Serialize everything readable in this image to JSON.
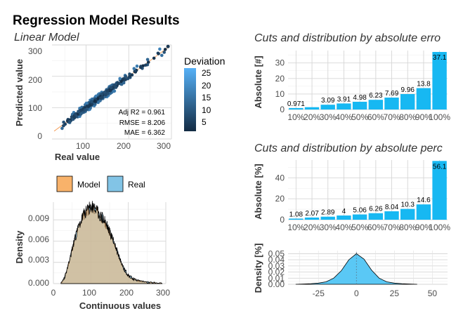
{
  "header": {
    "title": "Regression Model Results",
    "subtitle": "Linear Model"
  },
  "scatter": {
    "xlabel": "Real value",
    "ylabel": "Predicted value",
    "xticks": [
      "100",
      "200",
      "300"
    ],
    "yticks": [
      "0",
      "100",
      "200",
      "300"
    ],
    "stats": [
      "Adj R2 =  0.961",
      "RMSE = 8.206",
      "MAE = 6.362"
    ],
    "legend_title": "Deviation",
    "legend_ticks": [
      "25",
      "20",
      "15",
      "10",
      "5"
    ],
    "colors": {
      "low": "#132B43",
      "high": "#56B1F7",
      "line": "#f4a261"
    }
  },
  "density_panel": {
    "legend_items": [
      "Model",
      "Real"
    ],
    "colors": {
      "model": "#f8b26a",
      "real": "#82c4e6",
      "overlap": "#8aa6a5"
    },
    "xlabel": "Continuous values",
    "ylabel": "Density",
    "xticks": [
      "0",
      "100",
      "200",
      "300"
    ],
    "yticks": [
      "0.000",
      "0.003",
      "0.006",
      "0.009"
    ]
  },
  "cuts_abs": {
    "title": "Cuts and distribution by absolute erro",
    "ylabel": "Absolute [#]",
    "yticks": [
      "0",
      "10",
      "20",
      "30"
    ],
    "bar_color": "#17b8f2"
  },
  "cuts_pct": {
    "title": "Cuts and distribution by absolute perc",
    "ylabel": "Absolute [%]",
    "yticks": [
      "0",
      "20",
      "40"
    ],
    "bar_color": "#17b8f2"
  },
  "error_density": {
    "ylabel": "Density [%]",
    "yticks": [
      "0.00",
      "0.01",
      "0.02",
      "0.03",
      "0.04",
      "0.05"
    ],
    "xticks": [
      "-25",
      "0",
      "25",
      "50"
    ],
    "fill": "#5ac8f5"
  },
  "chart_data": [
    {
      "type": "scatter",
      "title": "Linear Model",
      "xlabel": "Real value",
      "ylabel": "Predicted value",
      "xlim": [
        20,
        300
      ],
      "ylim": [
        0,
        300
      ],
      "color_scale": "Deviation",
      "annotations": [
        "Adj R2 =  0.961",
        "RMSE = 8.206",
        "MAE = 6.362"
      ]
    },
    {
      "type": "area",
      "xlabel": "Continuous values",
      "ylabel": "Density",
      "xlim": [
        0,
        300
      ],
      "ylim": [
        0,
        0.0115
      ],
      "series": [
        {
          "name": "Model",
          "x": [
            20,
            30,
            40,
            50,
            60,
            70,
            80,
            90,
            100,
            110,
            120,
            130,
            140,
            150,
            160,
            170,
            180,
            190,
            200,
            210,
            220,
            230,
            250,
            270,
            290
          ],
          "y": [
            0.0,
            0.0008,
            0.0026,
            0.0048,
            0.0068,
            0.0083,
            0.0096,
            0.0103,
            0.0107,
            0.0105,
            0.0099,
            0.0092,
            0.0084,
            0.0073,
            0.006,
            0.0045,
            0.0031,
            0.0019,
            0.0011,
            0.0007,
            0.0005,
            0.0004,
            0.0002,
            0.0001,
            0.0
          ]
        },
        {
          "name": "Real",
          "x": [
            20,
            30,
            40,
            50,
            60,
            70,
            80,
            90,
            100,
            110,
            120,
            130,
            140,
            150,
            160,
            170,
            180,
            190,
            200,
            210,
            220,
            230,
            250,
            270,
            290
          ],
          "y": [
            0.0,
            0.0009,
            0.0027,
            0.0049,
            0.0069,
            0.0084,
            0.0097,
            0.0104,
            0.0108,
            0.0106,
            0.01,
            0.0093,
            0.0085,
            0.0074,
            0.0061,
            0.0046,
            0.0032,
            0.002,
            0.0012,
            0.0008,
            0.0005,
            0.0004,
            0.0002,
            0.0001,
            0.0
          ]
        }
      ]
    },
    {
      "type": "bar",
      "title": "Cuts and distribution by absolute erro",
      "ylabel": "Absolute [#]",
      "categories": [
        "10%",
        "20%",
        "30%",
        "40%",
        "50%",
        "60%",
        "70%",
        "80%",
        "90%",
        "100%"
      ],
      "values": [
        0.971,
        1.5,
        3.09,
        3.91,
        4.98,
        6.23,
        7.69,
        9.96,
        13.8,
        37.1
      ],
      "labels": [
        "0.971",
        "",
        "3.09",
        "3.91",
        "4.98",
        "6.23",
        "7.69",
        "9.96",
        "13.8",
        "37.1"
      ],
      "ylim": [
        0,
        38
      ]
    },
    {
      "type": "bar",
      "title": "Cuts and distribution by absolute perc",
      "ylabel": "Absolute [%]",
      "categories": [
        "10%",
        "20%",
        "30%",
        "40%",
        "50%",
        "60%",
        "70%",
        "80%",
        "90%",
        "100%"
      ],
      "values": [
        1.08,
        2.07,
        2.89,
        4,
        5.06,
        6.26,
        8.04,
        10.3,
        14.6,
        56.1
      ],
      "labels": [
        "1.08",
        "2.07",
        "2.89",
        "4",
        "5.06",
        "6.26",
        "8.04",
        "10.3",
        "14.6",
        "56.1"
      ],
      "ylim": [
        0,
        57
      ]
    },
    {
      "type": "area",
      "ylabel": "Density [%]",
      "xlim": [
        -45,
        60
      ],
      "ylim": [
        0,
        0.055
      ],
      "x": [
        -40,
        -30,
        -25,
        -20,
        -15,
        -10,
        -5,
        0,
        5,
        10,
        15,
        20,
        25,
        30,
        40
      ],
      "y": [
        0.0,
        0.001,
        0.002,
        0.004,
        0.01,
        0.022,
        0.04,
        0.05,
        0.041,
        0.023,
        0.01,
        0.004,
        0.002,
        0.001,
        0.0
      ]
    }
  ]
}
